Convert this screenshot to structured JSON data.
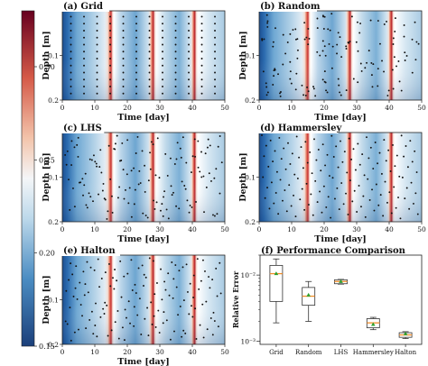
{
  "colorbar": {
    "ticks": [
      0.15,
      0.2,
      0.25,
      0.3
    ],
    "tick_labels": [
      "0.15",
      "0.20",
      "0.25",
      "0.30"
    ],
    "range": [
      0.15,
      0.33
    ],
    "colormap": "RdBu_r",
    "colors": {
      "low": "#1b4f8e",
      "mid": "#f4f6f8",
      "high": "#8b0a1e"
    }
  },
  "heatmap_axes": {
    "xlabel": "Time [day]",
    "ylabel": "Depth [m]",
    "xticks": [
      0,
      10,
      20,
      30,
      40,
      50
    ],
    "xtick_labels": [
      "0",
      "10",
      "20",
      "30",
      "40",
      "50"
    ],
    "yticks": [
      0.1,
      0.2
    ],
    "ytick_labels": [
      "0.1",
      "0.2"
    ],
    "xlim": [
      0,
      50
    ],
    "ylim": [
      0.2,
      0.0
    ]
  },
  "panels": [
    {
      "id": "a",
      "title": "(a) Grid",
      "sampling": "grid"
    },
    {
      "id": "b",
      "title": "(b) Random",
      "sampling": "random"
    },
    {
      "id": "c",
      "title": "(c) LHS",
      "sampling": "lhs"
    },
    {
      "id": "d",
      "title": "(d) Hammersley",
      "sampling": "hammersley"
    },
    {
      "id": "e",
      "title": "(e) Halton",
      "sampling": "halton"
    }
  ],
  "chart_data": [
    {
      "type": "heatmap",
      "description_of_field": "soil moisture field over time and depth; colorbar 0.15–0.33",
      "wetting_events_day": [
        14.5,
        27.5,
        40.5
      ],
      "xlim": [
        0,
        50
      ],
      "ylim": [
        0.2,
        0.0
      ],
      "xlabel": "Time [day]",
      "ylabel": "Depth [m]"
    },
    {
      "type": "box",
      "title": "(f) Performance Comparison",
      "ylabel": "Relative Error",
      "yscale": "log",
      "ylim": [
        0.0009,
        0.02
      ],
      "ytick_labels": [
        "10⁻³",
        "10⁻²"
      ],
      "categories": [
        "Grid",
        "Random",
        "LHS",
        "Hammersley",
        "Halton"
      ],
      "boxes": [
        {
          "name": "Grid",
          "whislo": 0.0019,
          "q1": 0.004,
          "med": 0.0105,
          "q3": 0.014,
          "whishi": 0.0175,
          "mean": 0.0105
        },
        {
          "name": "Random",
          "whislo": 0.002,
          "q1": 0.0035,
          "med": 0.0048,
          "q3": 0.0065,
          "whishi": 0.008,
          "mean": 0.005
        },
        {
          "name": "LHS",
          "whislo": 0.0073,
          "q1": 0.0074,
          "med": 0.008,
          "q3": 0.0085,
          "whishi": 0.0086,
          "mean": 0.008
        },
        {
          "name": "Hammersley",
          "whislo": 0.0015,
          "q1": 0.0016,
          "med": 0.0019,
          "q3": 0.0022,
          "whishi": 0.0023,
          "mean": 0.0018
        },
        {
          "name": "Halton",
          "whislo": 0.0011,
          "q1": 0.00115,
          "med": 0.00125,
          "q3": 0.00135,
          "whishi": 0.0014,
          "mean": 0.0013
        }
      ],
      "colors": {
        "box": "#333333",
        "median": "#f28e2b",
        "mean": "#2ca02c"
      }
    }
  ]
}
